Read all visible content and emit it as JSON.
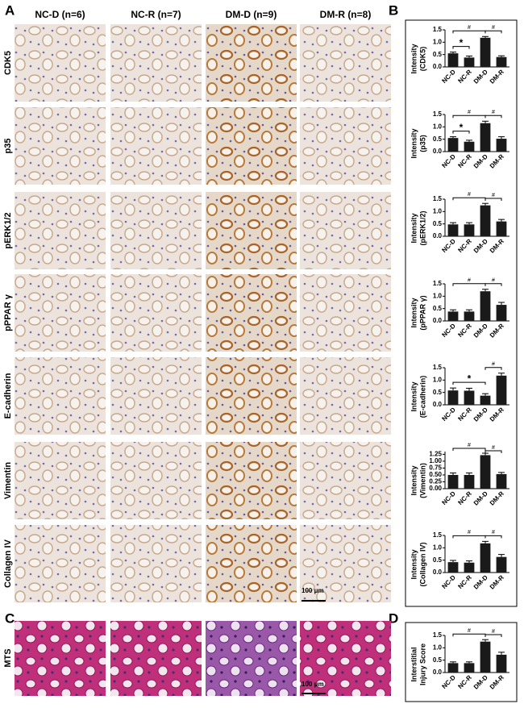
{
  "panels": {
    "a": "A",
    "b": "B",
    "c": "C",
    "d": "D"
  },
  "columns": [
    "NC-D (n=6)",
    "NC-R (n=7)",
    "DM-D (n=9)",
    "DM-R (n=8)"
  ],
  "rows": [
    "CDK5",
    "p35",
    "pERK1/2",
    "pPPAR γ",
    "E-cadherin",
    "Vimentin",
    "Collagen IV"
  ],
  "mts_label": "MTS",
  "scale_bar": "100 μm",
  "chart_data": [
    {
      "type": "bar",
      "ylabel": [
        "Intensity",
        "(CDK5)"
      ],
      "categories": [
        "NC-D",
        "NC-R",
        "DM-D",
        "DM-R"
      ],
      "values": [
        0.55,
        0.38,
        1.18,
        0.4
      ],
      "errors": [
        0.05,
        0.06,
        0.05,
        0.05
      ],
      "color": "#1a1a1a",
      "ylim": [
        0,
        1.5
      ],
      "yticks": [
        {
          "value": 0,
          "label": "0.0"
        },
        0.5,
        {
          "value": 1,
          "label": "1.0"
        },
        1.5
      ],
      "annotations": [
        {
          "text": "#",
          "from": 0,
          "to": 2
        },
        {
          "text": "#",
          "from": 2,
          "to": 3
        },
        {
          "text": "*",
          "from": 0,
          "to": 1
        }
      ]
    },
    {
      "type": "bar",
      "ylabel": [
        "Intensity",
        "(p35)"
      ],
      "categories": [
        "NC-D",
        "NC-R",
        "DM-D",
        "DM-R"
      ],
      "values": [
        0.55,
        0.4,
        1.15,
        0.52
      ],
      "errors": [
        0.05,
        0.06,
        0.08,
        0.08
      ],
      "color": "#1a1a1a",
      "ylim": [
        0,
        1.5
      ],
      "yticks": [
        {
          "value": 0,
          "label": "0.0"
        },
        0.5,
        {
          "value": 1,
          "label": "1.0"
        },
        1.5
      ],
      "annotations": [
        {
          "text": "#",
          "from": 0,
          "to": 2
        },
        {
          "text": "#",
          "from": 2,
          "to": 3
        },
        {
          "text": "*",
          "from": 0,
          "to": 1
        }
      ]
    },
    {
      "type": "bar",
      "ylabel": [
        "Intensity",
        "(pERK1/2)"
      ],
      "categories": [
        "NC-D",
        "NC-R",
        "DM-D",
        "DM-R"
      ],
      "values": [
        0.48,
        0.48,
        1.25,
        0.6
      ],
      "errors": [
        0.07,
        0.07,
        0.08,
        0.08
      ],
      "color": "#1a1a1a",
      "ylim": [
        0,
        1.5
      ],
      "yticks": [
        {
          "value": 0,
          "label": "0.0"
        },
        0.5,
        {
          "value": 1,
          "label": "1.0"
        },
        1.5
      ],
      "annotations": [
        {
          "text": "#",
          "from": 0,
          "to": 2
        },
        {
          "text": "#",
          "from": 2,
          "to": 3
        }
      ]
    },
    {
      "type": "bar",
      "ylabel": [
        "Intensity",
        "(pPPAR γ)"
      ],
      "categories": [
        "NC-D",
        "NC-R",
        "DM-D",
        "DM-R"
      ],
      "values": [
        0.38,
        0.38,
        1.2,
        0.65
      ],
      "errors": [
        0.07,
        0.07,
        0.08,
        0.1
      ],
      "color": "#1a1a1a",
      "ylim": [
        0,
        1.5
      ],
      "yticks": [
        {
          "value": 0,
          "label": "0.0"
        },
        0.5,
        {
          "value": 1,
          "label": "1.0"
        },
        1.5
      ],
      "annotations": [
        {
          "text": "#",
          "from": 0,
          "to": 2
        },
        {
          "text": "#",
          "from": 2,
          "to": 3
        }
      ]
    },
    {
      "type": "bar",
      "ylabel": [
        "Intensity",
        "(E-cadherin)"
      ],
      "categories": [
        "NC-D",
        "NC-R",
        "DM-D",
        "DM-R"
      ],
      "values": [
        0.58,
        0.57,
        0.37,
        1.18
      ],
      "errors": [
        0.1,
        0.1,
        0.08,
        0.1
      ],
      "color": "#1a1a1a",
      "ylim": [
        0,
        1.5
      ],
      "yticks": [
        {
          "value": 0,
          "label": "0.0"
        },
        0.5,
        {
          "value": 1,
          "label": "1.0"
        },
        1.5
      ],
      "annotations": [
        {
          "text": "*",
          "from": 0,
          "to": 2
        },
        {
          "text": "#",
          "from": 2,
          "to": 3
        }
      ]
    },
    {
      "type": "bar",
      "ylabel": [
        "Intensity",
        "(Vimentin)"
      ],
      "categories": [
        "NC-D",
        "NC-R",
        "DM-D",
        "DM-R"
      ],
      "values": [
        0.5,
        0.5,
        1.22,
        0.53
      ],
      "errors": [
        0.07,
        0.07,
        0.07,
        0.06
      ],
      "color": "#1a1a1a",
      "ylim": [
        0,
        1.35
      ],
      "yticks": [
        {
          "value": 0,
          "label": "0.00"
        },
        0.25,
        {
          "value": 0.5,
          "label": "0.50"
        },
        0.75,
        {
          "value": 1,
          "label": "1.00"
        },
        1.25
      ],
      "annotations": [
        {
          "text": "#",
          "from": 0,
          "to": 2
        },
        {
          "text": "#",
          "from": 2,
          "to": 3
        }
      ]
    },
    {
      "type": "bar",
      "ylabel": [
        "Intensity",
        "(Collagen IV)"
      ],
      "categories": [
        "NC-D",
        "NC-R",
        "DM-D",
        "DM-R"
      ],
      "values": [
        0.42,
        0.4,
        1.18,
        0.63
      ],
      "errors": [
        0.07,
        0.07,
        0.08,
        0.1
      ],
      "color": "#1a1a1a",
      "ylim": [
        0,
        1.5
      ],
      "yticks": [
        {
          "value": 0,
          "label": "0.0"
        },
        0.5,
        {
          "value": 1,
          "label": "1.0"
        },
        1.5
      ],
      "annotations": [
        {
          "text": "#",
          "from": 0,
          "to": 2
        },
        {
          "text": "#",
          "from": 2,
          "to": 3
        }
      ]
    },
    {
      "type": "bar",
      "ylabel": [
        "Interstitial",
        "Injury Score"
      ],
      "categories": [
        "NC-D",
        "NC-R",
        "DM-D",
        "DM-R"
      ],
      "values": [
        0.38,
        0.38,
        1.25,
        0.72
      ],
      "errors": [
        0.05,
        0.05,
        0.08,
        0.1
      ],
      "color": "#1a1a1a",
      "ylim": [
        0,
        1.5
      ],
      "yticks": [
        {
          "value": 0,
          "label": "0.0"
        },
        0.5,
        {
          "value": 1,
          "label": "1.0"
        },
        1.5
      ],
      "annotations": [
        {
          "text": "#",
          "from": 0,
          "to": 2
        },
        {
          "text": "#",
          "from": 2,
          "to": 3
        }
      ]
    }
  ]
}
